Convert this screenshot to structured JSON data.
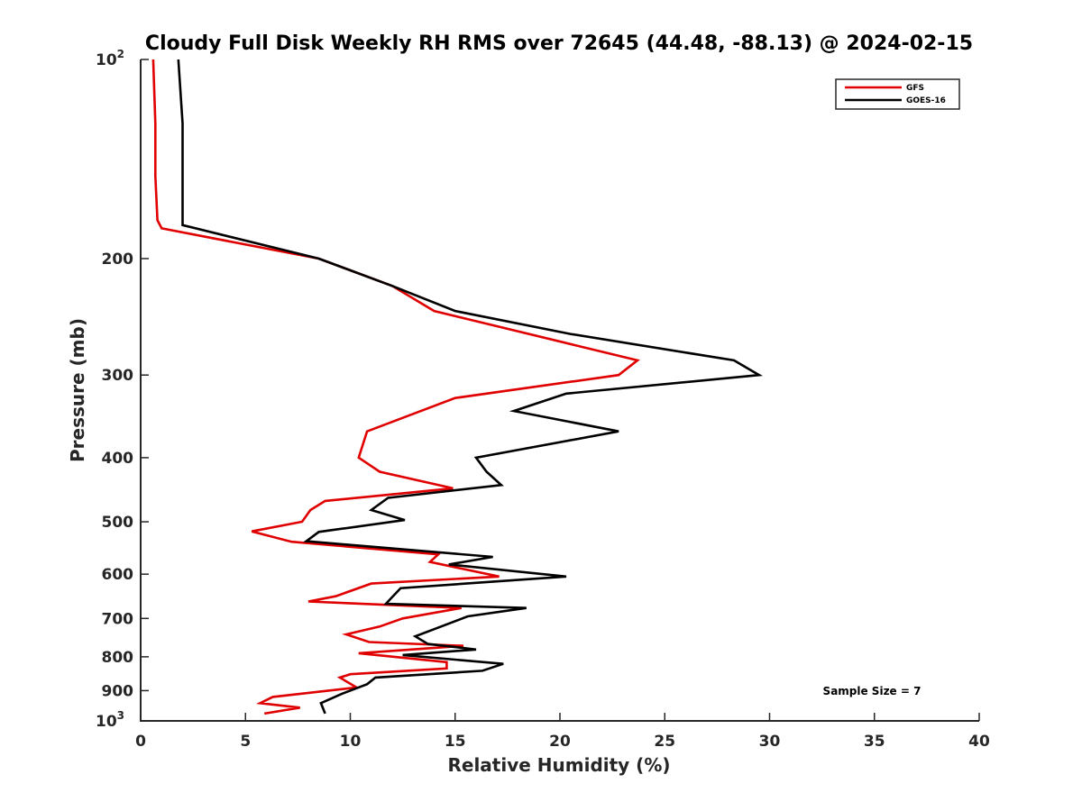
{
  "chart_data": {
    "type": "line",
    "title": "Cloudy Full Disk Weekly RH RMS over 72645 (44.48, -88.13) @ 2024-02-15",
    "xlabel": "Relative Humidity (%)",
    "ylabel": "Pressure (mb)",
    "xlim": [
      0,
      40
    ],
    "ylim": [
      100,
      1000
    ],
    "y_scale": "log",
    "y_reversed": true,
    "grid": false,
    "legend_position": "top-right",
    "x_ticks": [
      "0",
      "5",
      "10",
      "15",
      "20",
      "25",
      "30",
      "35",
      "40"
    ],
    "y_ticks": [
      {
        "value": 100,
        "label": "10",
        "exp": "2"
      },
      {
        "value": 200,
        "label": "200"
      },
      {
        "value": 300,
        "label": "300"
      },
      {
        "value": 400,
        "label": "400"
      },
      {
        "value": 500,
        "label": "500"
      },
      {
        "value": 600,
        "label": "600"
      },
      {
        "value": 700,
        "label": "700"
      },
      {
        "value": 800,
        "label": "800"
      },
      {
        "value": 900,
        "label": "900"
      },
      {
        "value": 1000,
        "label": "10",
        "exp": "3"
      }
    ],
    "annotation": "Sample Size = 7",
    "series": [
      {
        "name": "GFS",
        "color": "#e00000",
        "points": [
          [
            0.6,
            100
          ],
          [
            0.7,
            125
          ],
          [
            0.7,
            150
          ],
          [
            0.8,
            175
          ],
          [
            1.0,
            180
          ],
          [
            8.5,
            200
          ],
          [
            12.0,
            220
          ],
          [
            14.0,
            240
          ],
          [
            23.7,
            285
          ],
          [
            22.8,
            300
          ],
          [
            15.0,
            325
          ],
          [
            10.8,
            365
          ],
          [
            10.4,
            400
          ],
          [
            11.4,
            420
          ],
          [
            14.9,
            445
          ],
          [
            8.8,
            465
          ],
          [
            8.1,
            480
          ],
          [
            7.7,
            500
          ],
          [
            5.3,
            517
          ],
          [
            7.2,
            536
          ],
          [
            14.2,
            560
          ],
          [
            13.8,
            575
          ],
          [
            17.1,
            605
          ],
          [
            11.0,
            620
          ],
          [
            9.3,
            648
          ],
          [
            8.0,
            660
          ],
          [
            15.3,
            675
          ],
          [
            12.5,
            700
          ],
          [
            11.4,
            720
          ],
          [
            9.8,
            740
          ],
          [
            10.9,
            760
          ],
          [
            15.4,
            770
          ],
          [
            10.4,
            790
          ],
          [
            14.6,
            815
          ],
          [
            14.6,
            833
          ],
          [
            10.0,
            850
          ],
          [
            9.5,
            860
          ],
          [
            10.3,
            890
          ],
          [
            6.3,
            920
          ],
          [
            5.7,
            940
          ],
          [
            7.6,
            955
          ],
          [
            5.9,
            975
          ]
        ]
      },
      {
        "name": "GOES-16",
        "color": "#000000",
        "points": [
          [
            1.8,
            100
          ],
          [
            2.0,
            125
          ],
          [
            2.0,
            150
          ],
          [
            2.0,
            178
          ],
          [
            8.5,
            200
          ],
          [
            12.0,
            220
          ],
          [
            15.0,
            240
          ],
          [
            20.5,
            260
          ],
          [
            28.3,
            285
          ],
          [
            29.5,
            300
          ],
          [
            20.3,
            320
          ],
          [
            17.8,
            340
          ],
          [
            22.8,
            365
          ],
          [
            16.0,
            400
          ],
          [
            16.5,
            420
          ],
          [
            17.2,
            440
          ],
          [
            11.8,
            460
          ],
          [
            11.0,
            480
          ],
          [
            12.6,
            497
          ],
          [
            8.5,
            518
          ],
          [
            7.9,
            535
          ],
          [
            16.8,
            565
          ],
          [
            14.7,
            580
          ],
          [
            20.3,
            605
          ],
          [
            12.4,
            630
          ],
          [
            11.7,
            665
          ],
          [
            18.4,
            675
          ],
          [
            15.6,
            695
          ],
          [
            13.1,
            745
          ],
          [
            13.7,
            765
          ],
          [
            16.0,
            780
          ],
          [
            12.5,
            795
          ],
          [
            17.3,
            820
          ],
          [
            16.3,
            840
          ],
          [
            11.2,
            860
          ],
          [
            10.8,
            880
          ],
          [
            9.6,
            910
          ],
          [
            8.6,
            940
          ],
          [
            8.8,
            975
          ]
        ]
      }
    ]
  }
}
